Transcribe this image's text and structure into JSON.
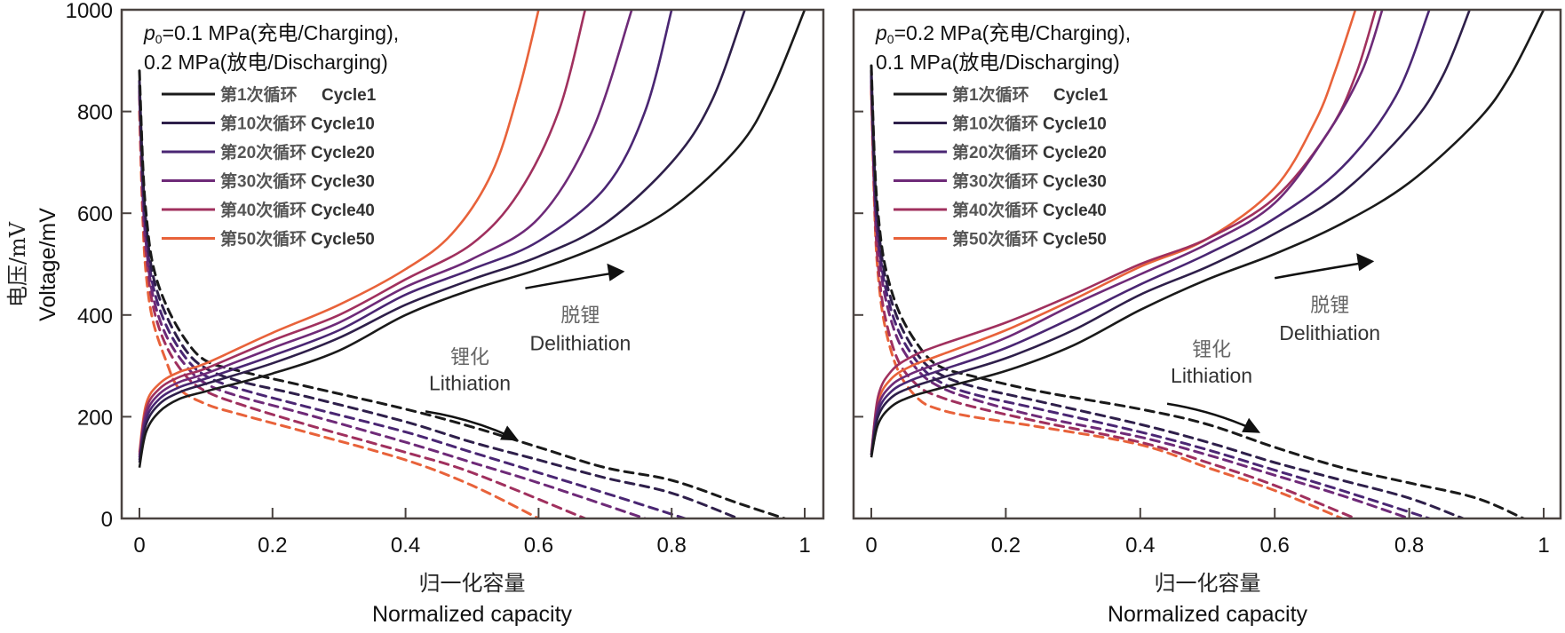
{
  "chart_data": [
    {
      "type": "line",
      "panel": "left",
      "title": "",
      "condition_line1_prefix": "p",
      "condition_line1_sub": "0",
      "condition_line1": "=0.1 MPa(充电/Charging),",
      "condition_line2": "0.2 MPa(放电/Discharging)",
      "xlabel_cn": "归一化容量",
      "xlabel": "Normalized capacity",
      "ylabel_cn": "电压/mV",
      "ylabel": "Voltage/mV",
      "xlim": [
        0,
        1
      ],
      "ylim": [
        0,
        1000
      ],
      "xticks": [
        "0",
        "0.2",
        "0.4",
        "0.6",
        "0.8",
        "1"
      ],
      "yticks": [
        "0",
        "200",
        "400",
        "600",
        "800",
        "1000"
      ],
      "grid": false,
      "legend_position": "top-left",
      "annotations": {
        "delithiation_cn": "脱锂",
        "delithiation_en": "Delithiation",
        "lithiation_cn": "锂化",
        "lithiation_en": "Lithiation"
      },
      "series": [
        {
          "name_cn": "第1次循环",
          "name": "Cycle1",
          "color": "#1a1a1a",
          "charge": {
            "x": [
              0,
              0.01,
              0.03,
              0.06,
              0.1,
              0.2,
              0.3,
              0.4,
              0.5,
              0.6,
              0.7,
              0.8,
              0.9,
              0.95,
              1.0
            ],
            "y": [
              100,
              170,
              210,
              235,
              250,
              285,
              330,
              400,
              450,
              490,
              540,
              610,
              730,
              840,
              1000
            ]
          },
          "discharge": {
            "x": [
              0,
              0.005,
              0.01,
              0.02,
              0.04,
              0.07,
              0.1,
              0.15,
              0.25,
              0.4,
              0.5,
              0.6,
              0.7,
              0.8,
              0.9,
              0.97
            ],
            "y": [
              880,
              700,
              600,
              500,
              420,
              350,
              310,
              290,
              260,
              215,
              180,
              140,
              100,
              75,
              30,
              0
            ]
          }
        },
        {
          "name_cn": "第10次循环",
          "name": "Cycle10",
          "color": "#2e1f4a",
          "charge": {
            "x": [
              0,
              0.01,
              0.03,
              0.06,
              0.1,
              0.2,
              0.3,
              0.4,
              0.5,
              0.6,
              0.7,
              0.8,
              0.86,
              0.91
            ],
            "y": [
              110,
              185,
              225,
              248,
              265,
              305,
              355,
              420,
              470,
              515,
              580,
              700,
              820,
              1000
            ]
          },
          "discharge": {
            "x": [
              0,
              0.005,
              0.01,
              0.02,
              0.04,
              0.07,
              0.1,
              0.15,
              0.25,
              0.4,
              0.5,
              0.6,
              0.7,
              0.8,
              0.9
            ],
            "y": [
              860,
              680,
              580,
              480,
              400,
              330,
              295,
              270,
              240,
              190,
              150,
              115,
              80,
              50,
              0
            ]
          }
        },
        {
          "name_cn": "第20次循环",
          "name": "Cycle20",
          "color": "#4a2673",
          "charge": {
            "x": [
              0,
              0.01,
              0.03,
              0.06,
              0.1,
              0.2,
              0.3,
              0.4,
              0.5,
              0.6,
              0.7,
              0.76,
              0.8
            ],
            "y": [
              115,
              195,
              235,
              258,
              275,
              320,
              370,
              440,
              490,
              545,
              650,
              800,
              1000
            ]
          },
          "discharge": {
            "x": [
              0,
              0.005,
              0.01,
              0.02,
              0.04,
              0.07,
              0.1,
              0.15,
              0.25,
              0.4,
              0.5,
              0.6,
              0.7,
              0.82
            ],
            "y": [
              850,
              660,
              560,
              460,
              380,
              315,
              280,
              255,
              220,
              170,
              130,
              90,
              50,
              0
            ]
          }
        },
        {
          "name_cn": "第30次循环",
          "name": "Cycle30",
          "color": "#6e2a78",
          "charge": {
            "x": [
              0,
              0.01,
              0.03,
              0.06,
              0.1,
              0.2,
              0.3,
              0.4,
              0.5,
              0.6,
              0.68,
              0.74
            ],
            "y": [
              120,
              205,
              245,
              268,
              285,
              335,
              385,
              455,
              510,
              590,
              760,
              1000
            ]
          },
          "discharge": {
            "x": [
              0,
              0.005,
              0.01,
              0.02,
              0.04,
              0.07,
              0.1,
              0.15,
              0.25,
              0.4,
              0.5,
              0.6,
              0.76
            ],
            "y": [
              840,
              640,
              540,
              440,
              360,
              300,
              265,
              240,
              205,
              150,
              110,
              70,
              0
            ]
          }
        },
        {
          "name_cn": "第40次循环",
          "name": "Cycle40",
          "color": "#a0305e",
          "charge": {
            "x": [
              0,
              0.01,
              0.03,
              0.06,
              0.1,
              0.2,
              0.3,
              0.4,
              0.5,
              0.57,
              0.63,
              0.67
            ],
            "y": [
              125,
              215,
              255,
              278,
              295,
              350,
              400,
              470,
              540,
              640,
              800,
              1000
            ]
          },
          "discharge": {
            "x": [
              0,
              0.005,
              0.01,
              0.02,
              0.04,
              0.07,
              0.1,
              0.15,
              0.25,
              0.4,
              0.5,
              0.67
            ],
            "y": [
              830,
              620,
              520,
              420,
              340,
              280,
              250,
              225,
              185,
              130,
              90,
              0
            ]
          }
        },
        {
          "name_cn": "第50次循环",
          "name": "Cycle50",
          "color": "#e8623a",
          "charge": {
            "x": [
              0,
              0.01,
              0.03,
              0.06,
              0.1,
              0.2,
              0.3,
              0.4,
              0.47,
              0.53,
              0.57,
              0.6
            ],
            "y": [
              130,
              225,
              265,
              288,
              305,
              365,
              420,
              490,
              560,
              680,
              840,
              1000
            ]
          },
          "discharge": {
            "x": [
              0,
              0.005,
              0.01,
              0.02,
              0.04,
              0.06,
              0.1,
              0.15,
              0.25,
              0.4,
              0.5,
              0.6
            ],
            "y": [
              800,
              590,
              480,
              390,
              310,
              255,
              225,
              205,
              170,
              115,
              65,
              0
            ]
          }
        }
      ]
    },
    {
      "type": "line",
      "panel": "right",
      "title": "",
      "condition_line1_prefix": "p",
      "condition_line1_sub": "0",
      "condition_line1": "=0.2 MPa(充电/Charging),",
      "condition_line2": "0.1 MPa(放电/Discharging)",
      "xlabel_cn": "归一化容量",
      "xlabel": "Normalized capacity",
      "ylabel_cn": "",
      "ylabel": "",
      "xlim": [
        0,
        1
      ],
      "ylim": [
        0,
        1000
      ],
      "xticks": [
        "0",
        "0.2",
        "0.4",
        "0.6",
        "0.8",
        "1"
      ],
      "yticks": [],
      "grid": false,
      "legend_position": "top-left",
      "annotations": {
        "delithiation_cn": "脱锂",
        "delithiation_en": "Delithiation",
        "lithiation_cn": "锂化",
        "lithiation_en": "Lithiation"
      },
      "series": [
        {
          "name_cn": "第1次循环",
          "name": "Cycle1",
          "color": "#1a1a1a",
          "charge": {
            "x": [
              0,
              0.01,
              0.03,
              0.06,
              0.1,
              0.2,
              0.3,
              0.4,
              0.5,
              0.6,
              0.7,
              0.8,
              0.9,
              0.95,
              1.0
            ],
            "y": [
              120,
              185,
              220,
              240,
              255,
              290,
              340,
              410,
              470,
              520,
              580,
              660,
              780,
              870,
              1000
            ]
          },
          "discharge": {
            "x": [
              0,
              0.005,
              0.01,
              0.02,
              0.04,
              0.07,
              0.1,
              0.15,
              0.25,
              0.4,
              0.5,
              0.6,
              0.7,
              0.8,
              0.9,
              0.97
            ],
            "y": [
              890,
              700,
              600,
              500,
              410,
              340,
              300,
              280,
              250,
              215,
              185,
              140,
              100,
              70,
              40,
              0
            ]
          }
        },
        {
          "name_cn": "第10次循环",
          "name": "Cycle10",
          "color": "#2e1f4a",
          "charge": {
            "x": [
              0,
              0.01,
              0.03,
              0.06,
              0.1,
              0.2,
              0.3,
              0.4,
              0.5,
              0.6,
              0.7,
              0.8,
              0.85,
              0.89
            ],
            "y": [
              125,
              200,
              238,
              258,
              275,
              315,
              370,
              440,
              495,
              560,
              640,
              770,
              870,
              1000
            ]
          },
          "discharge": {
            "x": [
              0,
              0.005,
              0.01,
              0.02,
              0.04,
              0.07,
              0.1,
              0.15,
              0.25,
              0.4,
              0.5,
              0.6,
              0.7,
              0.8,
              0.88
            ],
            "y": [
              880,
              680,
              580,
              480,
              390,
              320,
              285,
              260,
              230,
              185,
              150,
              110,
              75,
              40,
              0
            ]
          }
        },
        {
          "name_cn": "第20次循环",
          "name": "Cycle20",
          "color": "#4a2673",
          "charge": {
            "x": [
              0,
              0.01,
              0.03,
              0.06,
              0.1,
              0.2,
              0.3,
              0.4,
              0.5,
              0.6,
              0.7,
              0.78,
              0.83
            ],
            "y": [
              125,
              210,
              250,
              272,
              290,
              335,
              395,
              460,
              520,
              590,
              690,
              830,
              1000
            ]
          },
          "discharge": {
            "x": [
              0,
              0.005,
              0.01,
              0.02,
              0.04,
              0.07,
              0.1,
              0.15,
              0.25,
              0.4,
              0.5,
              0.6,
              0.7,
              0.83
            ],
            "y": [
              870,
              660,
              560,
              460,
              370,
              305,
              270,
              245,
              215,
              170,
              135,
              95,
              55,
              0
            ]
          }
        },
        {
          "name_cn": "第30次循环",
          "name": "Cycle30",
          "color": "#6e2a78",
          "charge": {
            "x": [
              0,
              0.01,
              0.03,
              0.06,
              0.1,
              0.2,
              0.3,
              0.4,
              0.5,
              0.6,
              0.68,
              0.73,
              0.76
            ],
            "y": [
              125,
              220,
              262,
              285,
              305,
              355,
              420,
              480,
              540,
              620,
              760,
              880,
              1000
            ]
          },
          "discharge": {
            "x": [
              0,
              0.005,
              0.01,
              0.02,
              0.04,
              0.07,
              0.1,
              0.15,
              0.25,
              0.4,
              0.5,
              0.6,
              0.7,
              0.8
            ],
            "y": [
              860,
              640,
              540,
              440,
              350,
              290,
              260,
              235,
              200,
              160,
              125,
              85,
              45,
              0
            ]
          }
        },
        {
          "name_cn": "第40次循环",
          "name": "Cycle40",
          "color": "#a0305e",
          "charge": {
            "x": [
              0,
              0.01,
              0.03,
              0.06,
              0.1,
              0.2,
              0.3,
              0.4,
              0.5,
              0.6,
              0.68,
              0.72,
              0.75
            ],
            "y": [
              125,
              240,
              290,
              318,
              340,
              385,
              440,
              500,
              550,
              630,
              760,
              870,
              1000
            ]
          },
          "discharge": {
            "x": [
              0,
              0.005,
              0.01,
              0.02,
              0.04,
              0.07,
              0.1,
              0.15,
              0.25,
              0.4,
              0.5,
              0.6,
              0.72
            ],
            "y": [
              850,
              620,
              500,
              400,
              310,
              260,
              240,
              220,
              190,
              150,
              110,
              65,
              0
            ]
          }
        },
        {
          "name_cn": "第50次循环",
          "name": "Cycle50",
          "color": "#e8623a",
          "charge": {
            "x": [
              0,
              0.01,
              0.03,
              0.06,
              0.1,
              0.2,
              0.3,
              0.4,
              0.5,
              0.6,
              0.66,
              0.69,
              0.72
            ],
            "y": [
              130,
              230,
              275,
              300,
              320,
              370,
              430,
              495,
              550,
              650,
              780,
              880,
              1000
            ]
          },
          "discharge": {
            "x": [
              0,
              0.005,
              0.01,
              0.02,
              0.04,
              0.07,
              0.1,
              0.15,
              0.25,
              0.4,
              0.5,
              0.6,
              0.7
            ],
            "y": [
              840,
              600,
              480,
              380,
              290,
              235,
              215,
              200,
              180,
              145,
              100,
              55,
              0
            ]
          }
        }
      ]
    }
  ]
}
